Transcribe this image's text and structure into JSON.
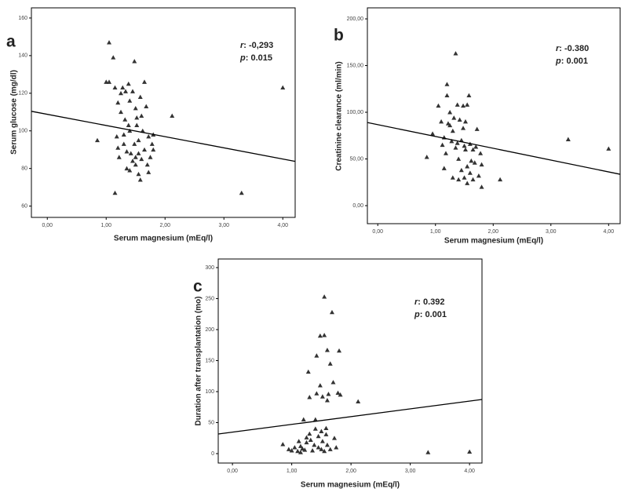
{
  "chart_data": [
    {
      "type": "scatter",
      "panel_label": "a",
      "x_label": "Serum magnesium (mEq/l)",
      "y_label": "Serum glucose (mg/dl)",
      "annotations": [
        {
          "symbol": "r",
          "text": ": -0,293"
        },
        {
          "symbol": "p",
          "text": ": 0.015"
        }
      ],
      "color": "#333333",
      "x": [
        0.85,
        1.0,
        1.05,
        1.05,
        1.12,
        1.15,
        1.15,
        1.18,
        1.2,
        1.2,
        1.22,
        1.25,
        1.25,
        1.28,
        1.3,
        1.3,
        1.32,
        1.33,
        1.35,
        1.35,
        1.38,
        1.38,
        1.4,
        1.4,
        1.4,
        1.42,
        1.45,
        1.45,
        1.48,
        1.48,
        1.5,
        1.5,
        1.5,
        1.52,
        1.52,
        1.55,
        1.55,
        1.55,
        1.58,
        1.58,
        1.6,
        1.6,
        1.62,
        1.65,
        1.65,
        1.68,
        1.7,
        1.72,
        1.72,
        1.75,
        1.78,
        1.8,
        1.8,
        2.12,
        3.3,
        4.0
      ],
      "values": [
        95,
        126,
        147,
        126,
        139,
        67,
        123,
        97,
        115,
        91,
        86,
        110,
        120,
        123,
        98,
        93,
        106,
        121,
        80,
        89,
        103,
        125,
        79,
        100,
        116,
        88,
        121,
        84,
        137,
        93,
        112,
        86,
        82,
        107,
        103,
        77,
        88,
        95,
        74,
        118,
        108,
        85,
        100,
        90,
        126,
        113,
        82,
        78,
        97,
        86,
        93,
        90,
        98,
        108,
        67,
        123
      ],
      "line": {
        "x": [
          -0.27,
          4.21
        ],
        "values": [
          110.4,
          83.8
        ]
      },
      "xlim": [
        -0.27,
        4.21
      ],
      "ylim": [
        54,
        165.4
      ],
      "xticks": [
        {
          "value": 0,
          "label": "0,00"
        },
        {
          "value": 1,
          "label": "1,00"
        },
        {
          "value": 2,
          "label": "2,00"
        },
        {
          "value": 3,
          "label": "3,00"
        },
        {
          "value": 4,
          "label": "4,00"
        }
      ],
      "yticks": [
        60,
        80,
        100,
        120,
        140,
        160
      ]
    },
    {
      "type": "scatter",
      "panel_label": "b",
      "x_label": "Serum magnesium (mEq/l)",
      "y_label": "Creatinine clearance (ml/min)",
      "annotations": [
        {
          "symbol": "r",
          "text": ": -0.380"
        },
        {
          "symbol": "p",
          "text": ": 0.001"
        }
      ],
      "color": "#333333",
      "x": [
        0.85,
        0.95,
        1.05,
        1.1,
        1.12,
        1.15,
        1.15,
        1.18,
        1.2,
        1.2,
        1.22,
        1.25,
        1.25,
        1.28,
        1.3,
        1.3,
        1.32,
        1.35,
        1.35,
        1.38,
        1.38,
        1.4,
        1.4,
        1.42,
        1.45,
        1.45,
        1.48,
        1.48,
        1.5,
        1.5,
        1.52,
        1.52,
        1.55,
        1.55,
        1.55,
        1.58,
        1.6,
        1.6,
        1.62,
        1.65,
        1.65,
        1.68,
        1.7,
        1.72,
        1.75,
        1.78,
        1.8,
        1.8,
        2.12,
        3.3,
        4.0
      ],
      "values": [
        52,
        77,
        107,
        90,
        65,
        73,
        40,
        56,
        130,
        118,
        88,
        86,
        100,
        69,
        30,
        80,
        94,
        163,
        62,
        67,
        108,
        50,
        28,
        92,
        70,
        38,
        107,
        83,
        64,
        30,
        60,
        90,
        42,
        24,
        108,
        118,
        66,
        35,
        48,
        60,
        28,
        46,
        63,
        82,
        32,
        56,
        44,
        20,
        28,
        71,
        61
      ],
      "line": {
        "x": [
          -0.18,
          4.2
        ],
        "values": [
          89,
          33.6
        ]
      },
      "xlim": [
        -0.18,
        4.2
      ],
      "ylim": [
        -19.3,
        211.8
      ],
      "xticks": [
        {
          "value": 0,
          "label": "0,00"
        },
        {
          "value": 1,
          "label": "1,00"
        },
        {
          "value": 2,
          "label": "2,00"
        },
        {
          "value": 3,
          "label": "3,00"
        },
        {
          "value": 4,
          "label": "4,00"
        }
      ],
      "yticks": [
        {
          "value": 0,
          "label": "0,00"
        },
        {
          "value": 50,
          "label": "50,00"
        },
        {
          "value": 100,
          "label": "100,00"
        },
        {
          "value": 150,
          "label": "150,00"
        },
        {
          "value": 200,
          "label": "200,00"
        }
      ]
    },
    {
      "type": "scatter",
      "panel_label": "c",
      "x_label": "Serum magnesium (mEq/l)",
      "y_label": "Duration after transplantation (mo)",
      "annotations": [
        {
          "symbol": "r",
          "text": ": 0.392"
        },
        {
          "symbol": "p",
          "text": ": 0.001"
        }
      ],
      "color": "#333333",
      "x": [
        0.85,
        0.95,
        1.0,
        1.05,
        1.1,
        1.12,
        1.15,
        1.15,
        1.18,
        1.2,
        1.22,
        1.25,
        1.25,
        1.28,
        1.3,
        1.3,
        1.32,
        1.35,
        1.38,
        1.4,
        1.4,
        1.42,
        1.42,
        1.45,
        1.45,
        1.48,
        1.48,
        1.5,
        1.5,
        1.52,
        1.52,
        1.55,
        1.55,
        1.55,
        1.58,
        1.58,
        1.6,
        1.6,
        1.6,
        1.62,
        1.65,
        1.65,
        1.68,
        1.7,
        1.72,
        1.75,
        1.78,
        1.8,
        1.82,
        2.12,
        3.3,
        4.0
      ],
      "values": [
        15,
        7,
        5,
        10,
        4,
        20,
        2,
        12,
        8,
        55,
        6,
        26,
        18,
        132,
        91,
        32,
        22,
        5,
        14,
        55,
        40,
        97,
        158,
        28,
        10,
        110,
        190,
        7,
        36,
        92,
        20,
        253,
        4,
        191,
        41,
        31,
        167,
        86,
        14,
        96,
        145,
        7,
        228,
        115,
        25,
        10,
        98,
        166,
        95,
        84,
        2,
        3
      ],
      "line": {
        "x": [
          -0.24,
          4.21
        ],
        "values": [
          31.6,
          87.3
        ]
      },
      "xlim": [
        -0.24,
        4.21
      ],
      "ylim": [
        -15.2,
        313.9
      ],
      "xticks": [
        {
          "value": 0,
          "label": "0,00"
        },
        {
          "value": 1,
          "label": "1,00"
        },
        {
          "value": 2,
          "label": "2,00"
        },
        {
          "value": 3,
          "label": "3,00"
        },
        {
          "value": 4,
          "label": "4,00"
        }
      ],
      "yticks": [
        0,
        50,
        100,
        150,
        200,
        250,
        300
      ]
    }
  ]
}
